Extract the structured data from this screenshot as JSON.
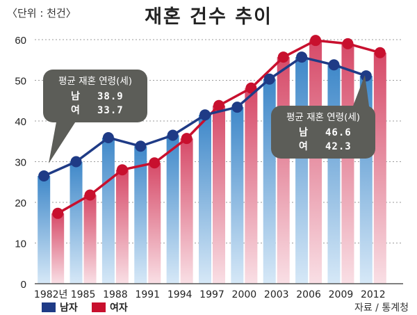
{
  "header": {
    "unit": "〈단위 : 천건〉",
    "title": "재혼 건수 추이"
  },
  "legend": {
    "male": "남자",
    "female": "여자"
  },
  "source": "자료 / 통계청",
  "callouts": [
    {
      "title": "평균 재혼 연령(세)",
      "rows": [
        {
          "label": "남",
          "value": "38.9"
        },
        {
          "label": "여",
          "value": "33.7"
        }
      ]
    },
    {
      "title": "평균 재혼 연령(세)",
      "rows": [
        {
          "label": "남",
          "value": "46.6"
        },
        {
          "label": "여",
          "value": "42.3"
        }
      ]
    }
  ],
  "colors": {
    "male": "#1f3b86",
    "female": "#c8102e",
    "male_bar_top": "#3f88c9",
    "female_bar_top": "#d64a68",
    "callout": "#5c5d58"
  },
  "chart_data": {
    "type": "bar",
    "categories": [
      "1982년",
      "1985",
      "1988",
      "1991",
      "1994",
      "1997",
      "2000",
      "2003",
      "2006",
      "2009",
      "2012"
    ],
    "series": [
      {
        "name": "남자",
        "values": [
          26.5,
          30.0,
          35.9,
          33.8,
          36.5,
          41.5,
          43.4,
          50.3,
          55.7,
          53.8,
          51.1
        ]
      },
      {
        "name": "여자",
        "values": [
          17.3,
          21.8,
          28.0,
          29.7,
          35.7,
          43.8,
          48.1,
          55.7,
          59.8,
          59.0,
          56.8
        ]
      }
    ],
    "overlay_lines": true,
    "ylim": [
      0,
      60
    ],
    "yticks": [
      0,
      10,
      20,
      30,
      40,
      50,
      60
    ],
    "grid": true,
    "title": "재혼 건수 추이"
  }
}
